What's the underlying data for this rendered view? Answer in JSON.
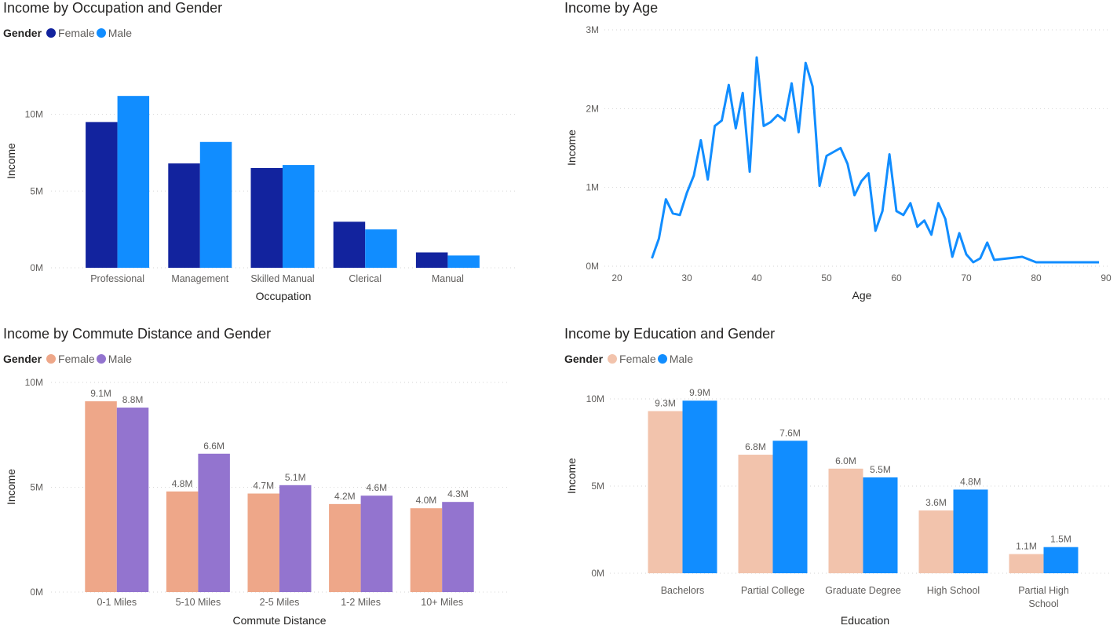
{
  "chart_data": [
    {
      "id": "occupation",
      "type": "bar",
      "title": "Income by Occupation and Gender",
      "legend_title": "Gender",
      "xlabel": "Occupation",
      "ylabel": "Income",
      "categories": [
        "Professional",
        "Management",
        "Skilled Manual",
        "Clerical",
        "Manual"
      ],
      "series": [
        {
          "name": "Female",
          "color": "#12239e",
          "values": [
            9.5,
            6.8,
            6.5,
            3.0,
            1.0
          ]
        },
        {
          "name": "Male",
          "color": "#118dff",
          "values": [
            11.2,
            8.2,
            6.7,
            2.5,
            0.8
          ]
        }
      ],
      "ylim": [
        0,
        13
      ],
      "yticks": [
        {
          "v": 0,
          "label": "0M"
        },
        {
          "v": 5,
          "label": "5M"
        },
        {
          "v": 10,
          "label": "10M"
        }
      ],
      "data_labels": false,
      "grid": true
    },
    {
      "id": "age",
      "type": "line",
      "title": "Income by Age",
      "xlabel": "Age",
      "ylabel": "Income",
      "series": [
        {
          "color": "#118dff",
          "x": [
            25,
            26,
            27,
            28,
            29,
            30,
            31,
            32,
            33,
            34,
            35,
            36,
            37,
            38,
            39,
            40,
            41,
            42,
            43,
            44,
            45,
            46,
            47,
            48,
            49,
            50,
            51,
            52,
            53,
            54,
            55,
            56,
            57,
            58,
            59,
            60,
            61,
            62,
            63,
            64,
            65,
            66,
            67,
            68,
            69,
            70,
            71,
            72,
            73,
            74,
            78,
            80,
            85,
            89
          ],
          "y": [
            0.1,
            0.35,
            0.85,
            0.67,
            0.65,
            0.93,
            1.15,
            1.6,
            1.1,
            1.78,
            1.85,
            2.3,
            1.75,
            2.2,
            1.2,
            2.65,
            1.78,
            1.83,
            1.92,
            1.85,
            2.32,
            1.7,
            2.58,
            2.28,
            1.02,
            1.4,
            1.45,
            1.5,
            1.3,
            0.9,
            1.08,
            1.18,
            0.45,
            0.7,
            1.42,
            0.7,
            0.65,
            0.8,
            0.5,
            0.58,
            0.4,
            0.8,
            0.6,
            0.12,
            0.42,
            0.15,
            0.05,
            0.1,
            0.3,
            0.08,
            0.12,
            0.05,
            0.05,
            0.05
          ]
        }
      ],
      "xlim": [
        18,
        91
      ],
      "xticks": [
        20,
        30,
        40,
        50,
        60,
        70,
        80,
        90
      ],
      "ylim": [
        0,
        3
      ],
      "yticks": [
        {
          "v": 0,
          "label": "0M"
        },
        {
          "v": 1,
          "label": "1M"
        },
        {
          "v": 2,
          "label": "2M"
        },
        {
          "v": 3,
          "label": "3M"
        }
      ],
      "grid": true
    },
    {
      "id": "commute",
      "type": "bar",
      "title": "Income by Commute Distance and Gender",
      "legend_title": "Gender",
      "xlabel": "Commute Distance",
      "ylabel": "Income",
      "categories": [
        "0-1 Miles",
        "5-10 Miles",
        "2-5 Miles",
        "1-2 Miles",
        "10+ Miles"
      ],
      "series": [
        {
          "name": "Female",
          "color": "#eea789",
          "values": [
            9.1,
            4.8,
            4.7,
            4.2,
            4.0
          ],
          "labels": [
            "9.1M",
            "4.8M",
            "4.7M",
            "4.2M",
            "4.0M"
          ]
        },
        {
          "name": "Male",
          "color": "#9374cf",
          "values": [
            8.8,
            6.6,
            5.1,
            4.6,
            4.3
          ],
          "labels": [
            "8.8M",
            "6.6M",
            "5.1M",
            "4.6M",
            "4.3M"
          ]
        }
      ],
      "ylim": [
        0,
        10
      ],
      "yticks": [
        {
          "v": 0,
          "label": "0M"
        },
        {
          "v": 5,
          "label": "5M"
        },
        {
          "v": 10,
          "label": "10M"
        }
      ],
      "data_labels": true,
      "grid": true
    },
    {
      "id": "education",
      "type": "bar",
      "title": "Income by Education and Gender",
      "legend_title": "Gender",
      "xlabel": "Education",
      "ylabel": "Income",
      "categories": [
        "Bachelors",
        "Partial College",
        "Graduate Degree",
        "High School",
        "Partial High School"
      ],
      "series": [
        {
          "name": "Female",
          "color": "#f2c3ac",
          "values": [
            9.3,
            6.8,
            6.0,
            3.6,
            1.1
          ],
          "labels": [
            "9.3M",
            "6.8M",
            "6.0M",
            "3.6M",
            "1.1M"
          ]
        },
        {
          "name": "Male",
          "color": "#118dff",
          "values": [
            9.9,
            7.6,
            5.5,
            4.8,
            1.5
          ],
          "labels": [
            "9.9M",
            "7.6M",
            "5.5M",
            "4.8M",
            "1.5M"
          ]
        }
      ],
      "ylim": [
        0,
        10
      ],
      "yticks": [
        {
          "v": 0,
          "label": "0M"
        },
        {
          "v": 5,
          "label": "5M"
        },
        {
          "v": 10,
          "label": "10M"
        }
      ],
      "data_labels": true,
      "grid": true
    }
  ]
}
